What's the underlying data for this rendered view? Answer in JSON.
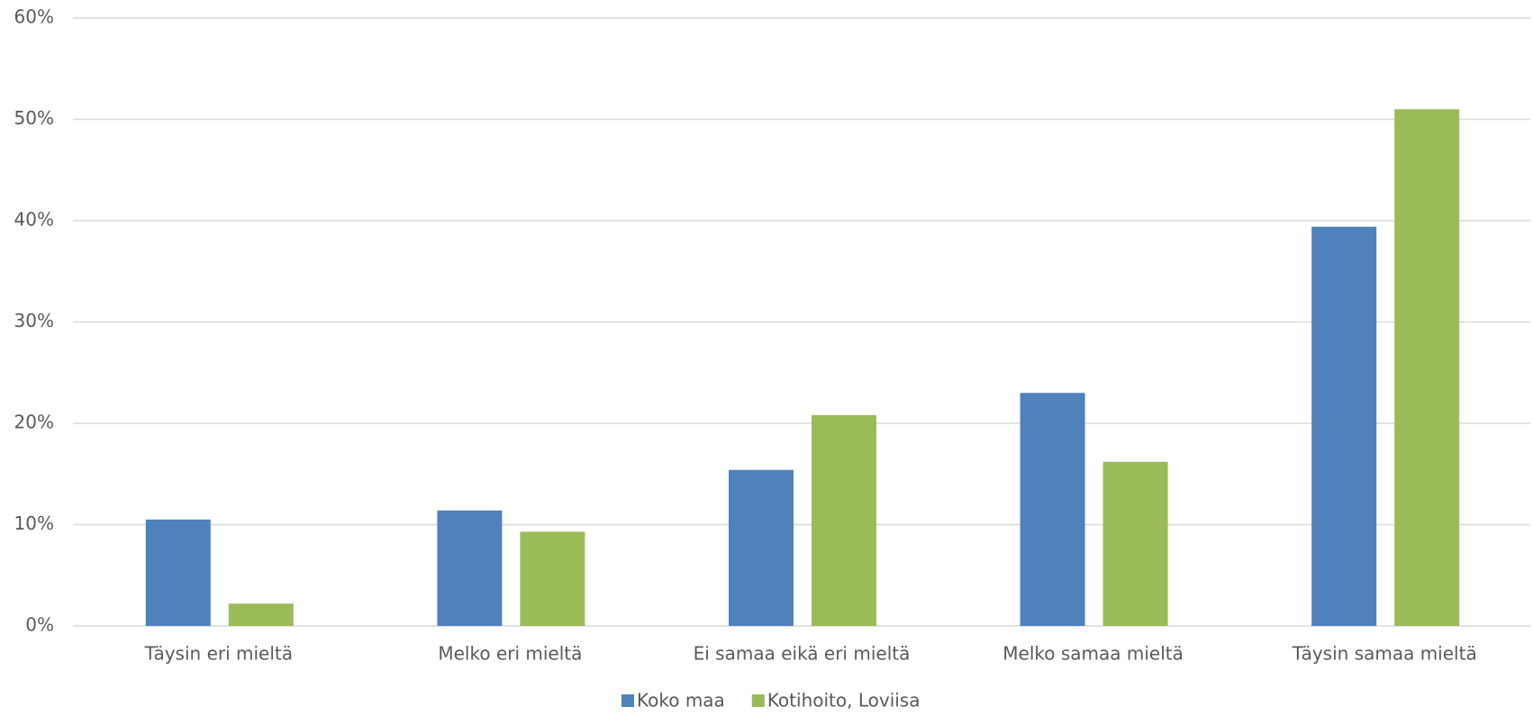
{
  "chart_data": {
    "type": "bar",
    "categories": [
      "Täysin eri mieltä",
      "Melko eri mieltä",
      "Ei samaa eikä eri mieltä",
      "Melko samaa mieltä",
      "Täysin samaa mieltä"
    ],
    "series": [
      {
        "name": "Koko maa",
        "color": "#4f81bd",
        "values": [
          10.5,
          11.4,
          15.4,
          23.0,
          39.4
        ]
      },
      {
        "name": "Kotihoito, Loviisa",
        "color": "#9bbb59",
        "values": [
          2.2,
          9.3,
          20.8,
          16.2,
          51.0
        ]
      }
    ],
    "ylim": [
      0,
      60
    ],
    "yticks": [
      {
        "value": 0,
        "label": "0%"
      },
      {
        "value": 10,
        "label": "10%"
      },
      {
        "value": 20,
        "label": "20%"
      },
      {
        "value": 30,
        "label": "30%"
      },
      {
        "value": 40,
        "label": "40%"
      },
      {
        "value": 50,
        "label": "50%"
      },
      {
        "value": 60,
        "label": "60%"
      }
    ],
    "grid": true,
    "legend": "bottom"
  }
}
